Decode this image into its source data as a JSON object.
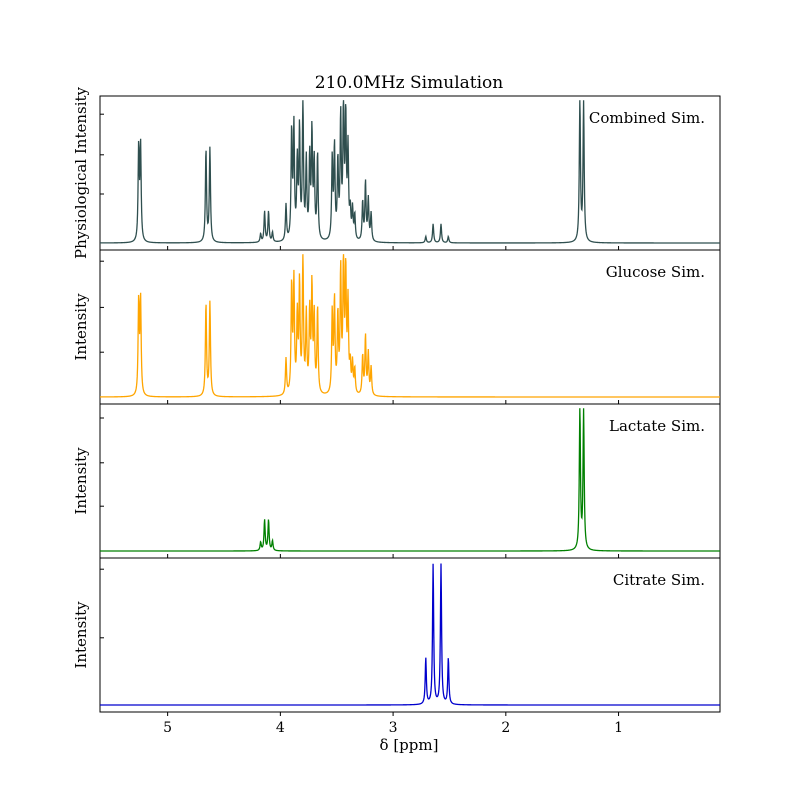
{
  "chart_data": {
    "type": "line",
    "title": "210.0MHz Simulation",
    "xlabel": "δ [ppm]",
    "xlim": [
      5.6,
      0.1
    ],
    "x_inverted": true,
    "x_ticks": [
      5,
      4,
      3,
      2,
      1
    ],
    "panels": [
      {
        "id": "combined",
        "ylabel": "Physiological Intensity",
        "label": "Combined Sim.",
        "color": "#2f4f4f",
        "y_ticks": [
          0.35,
          0.63,
          0.92
        ],
        "peaks": [
          {
            "c": 5.257,
            "h": 0.67
          },
          {
            "c": 5.24,
            "h": 0.68
          },
          {
            "c": 4.66,
            "h": 0.66
          },
          {
            "c": 4.625,
            "h": 0.67
          },
          {
            "c": 4.175,
            "h": 0.06
          },
          {
            "c": 4.14,
            "h": 0.22
          },
          {
            "c": 4.105,
            "h": 0.22
          },
          {
            "c": 4.07,
            "h": 0.07
          },
          {
            "c": 3.95,
            "h": 0.26
          },
          {
            "c": 3.9,
            "h": 0.78
          },
          {
            "c": 3.88,
            "h": 0.8
          },
          {
            "c": 3.85,
            "h": 0.55
          },
          {
            "c": 3.83,
            "h": 0.78
          },
          {
            "c": 3.8,
            "h": 0.99
          },
          {
            "c": 3.77,
            "h": 0.56
          },
          {
            "c": 3.74,
            "h": 0.58
          },
          {
            "c": 3.72,
            "h": 0.76
          },
          {
            "c": 3.7,
            "h": 0.55
          },
          {
            "c": 3.67,
            "h": 0.62
          },
          {
            "c": 3.54,
            "h": 0.58
          },
          {
            "c": 3.52,
            "h": 0.66
          },
          {
            "c": 3.49,
            "h": 0.55
          },
          {
            "c": 3.465,
            "h": 0.87
          },
          {
            "c": 3.44,
            "h": 1.0
          },
          {
            "c": 3.42,
            "h": 0.86
          },
          {
            "c": 3.4,
            "h": 0.64
          },
          {
            "c": 3.38,
            "h": 0.2
          },
          {
            "c": 3.36,
            "h": 0.22
          },
          {
            "c": 3.34,
            "h": 0.18
          },
          {
            "c": 3.27,
            "h": 0.28
          },
          {
            "c": 3.245,
            "h": 0.42
          },
          {
            "c": 3.22,
            "h": 0.3
          },
          {
            "c": 3.195,
            "h": 0.2
          },
          {
            "c": 2.71,
            "h": 0.045
          },
          {
            "c": 2.645,
            "h": 0.135
          },
          {
            "c": 2.575,
            "h": 0.135
          },
          {
            "c": 2.51,
            "h": 0.045
          },
          {
            "c": 1.343,
            "h": 1.01
          },
          {
            "c": 1.31,
            "h": 1.0
          }
        ]
      },
      {
        "id": "glucose",
        "ylabel": "Intensity",
        "label": "Glucose Sim.",
        "color": "#ffa500",
        "y_ticks": [
          0.32,
          0.64,
          0.97
        ],
        "peaks": [
          {
            "c": 5.257,
            "h": 0.67
          },
          {
            "c": 5.24,
            "h": 0.68
          },
          {
            "c": 4.66,
            "h": 0.66
          },
          {
            "c": 4.625,
            "h": 0.67
          },
          {
            "c": 3.95,
            "h": 0.26
          },
          {
            "c": 3.9,
            "h": 0.78
          },
          {
            "c": 3.88,
            "h": 0.8
          },
          {
            "c": 3.85,
            "h": 0.55
          },
          {
            "c": 3.83,
            "h": 0.78
          },
          {
            "c": 3.8,
            "h": 0.99
          },
          {
            "c": 3.77,
            "h": 0.56
          },
          {
            "c": 3.74,
            "h": 0.58
          },
          {
            "c": 3.72,
            "h": 0.76
          },
          {
            "c": 3.7,
            "h": 0.55
          },
          {
            "c": 3.67,
            "h": 0.62
          },
          {
            "c": 3.54,
            "h": 0.58
          },
          {
            "c": 3.52,
            "h": 0.66
          },
          {
            "c": 3.49,
            "h": 0.55
          },
          {
            "c": 3.465,
            "h": 0.87
          },
          {
            "c": 3.44,
            "h": 1.0
          },
          {
            "c": 3.42,
            "h": 0.86
          },
          {
            "c": 3.4,
            "h": 0.64
          },
          {
            "c": 3.38,
            "h": 0.2
          },
          {
            "c": 3.36,
            "h": 0.22
          },
          {
            "c": 3.34,
            "h": 0.18
          },
          {
            "c": 3.27,
            "h": 0.28
          },
          {
            "c": 3.245,
            "h": 0.42
          },
          {
            "c": 3.22,
            "h": 0.3
          },
          {
            "c": 3.195,
            "h": 0.2
          }
        ]
      },
      {
        "id": "lactate",
        "ylabel": "Intensity",
        "label": "Lactate Sim.",
        "color": "#008000",
        "y_ticks": [
          0.32,
          0.63,
          0.95
        ],
        "peaks": [
          {
            "c": 4.175,
            "h": 0.06
          },
          {
            "c": 4.14,
            "h": 0.22
          },
          {
            "c": 4.105,
            "h": 0.22
          },
          {
            "c": 4.07,
            "h": 0.07
          },
          {
            "c": 1.343,
            "h": 1.01
          },
          {
            "c": 1.31,
            "h": 1.0
          }
        ]
      },
      {
        "id": "citrate",
        "ylabel": "Intensity",
        "label": "Citrate Sim.",
        "color": "#0000cd",
        "y_ticks": [
          0.48,
          0.97
        ],
        "peaks": [
          {
            "c": 2.71,
            "h": 0.33
          },
          {
            "c": 2.645,
            "h": 1.0
          },
          {
            "c": 2.575,
            "h": 1.0
          },
          {
            "c": 2.51,
            "h": 0.33
          }
        ]
      }
    ]
  }
}
